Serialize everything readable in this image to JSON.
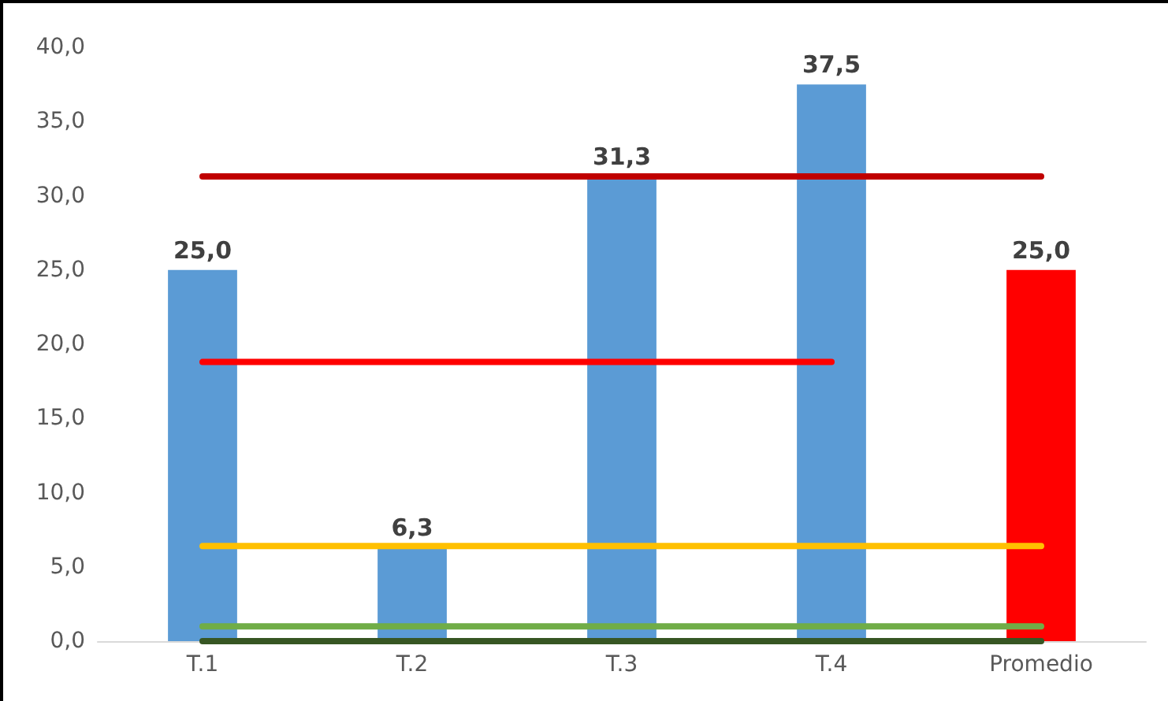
{
  "chart_data": {
    "type": "bar",
    "categories": [
      "T.1",
      "T.2",
      "T.3",
      "T.4",
      "Promedio"
    ],
    "series": [
      {
        "colors": [
          "#5b9bd5",
          "#5b9bd5",
          "#5b9bd5",
          "#5b9bd5",
          "#ff0000"
        ],
        "values": [
          25.0,
          6.3,
          31.3,
          37.5,
          25.0
        ],
        "value_labels": [
          "25,0",
          "6,3",
          "31,3",
          "37,5",
          "25,0"
        ]
      },
      {
        "type": "line",
        "color": "#c00000",
        "values": [
          31.3,
          31.3,
          31.3,
          31.3,
          31.3
        ]
      },
      {
        "type": "line",
        "color": "#ff0000",
        "values": [
          18.8,
          18.8,
          18.8,
          18.8,
          null
        ]
      },
      {
        "type": "line",
        "color": "#ffc000",
        "values": [
          6.4,
          6.4,
          6.4,
          6.4,
          6.4
        ]
      },
      {
        "type": "line",
        "color": "#70ad47",
        "values": [
          1.0,
          1.0,
          1.0,
          1.0,
          1.0
        ]
      },
      {
        "type": "line",
        "color": "#375623",
        "values": [
          0,
          0,
          0,
          0,
          0
        ]
      }
    ],
    "ylim": [
      0,
      40
    ],
    "yticks": [
      {
        "value": 0,
        "label": "0,0"
      },
      {
        "value": 5,
        "label": "5,0"
      },
      {
        "value": 10,
        "label": "10,0"
      },
      {
        "value": 15,
        "label": "15,0"
      },
      {
        "value": 20,
        "label": "20,0"
      },
      {
        "value": 25,
        "label": "25,0"
      },
      {
        "value": 30,
        "label": "30,0"
      },
      {
        "value": 35,
        "label": "35,0"
      },
      {
        "value": 40,
        "label": "40,0"
      }
    ],
    "grid": false,
    "marker": "none",
    "line_style": "solid"
  }
}
